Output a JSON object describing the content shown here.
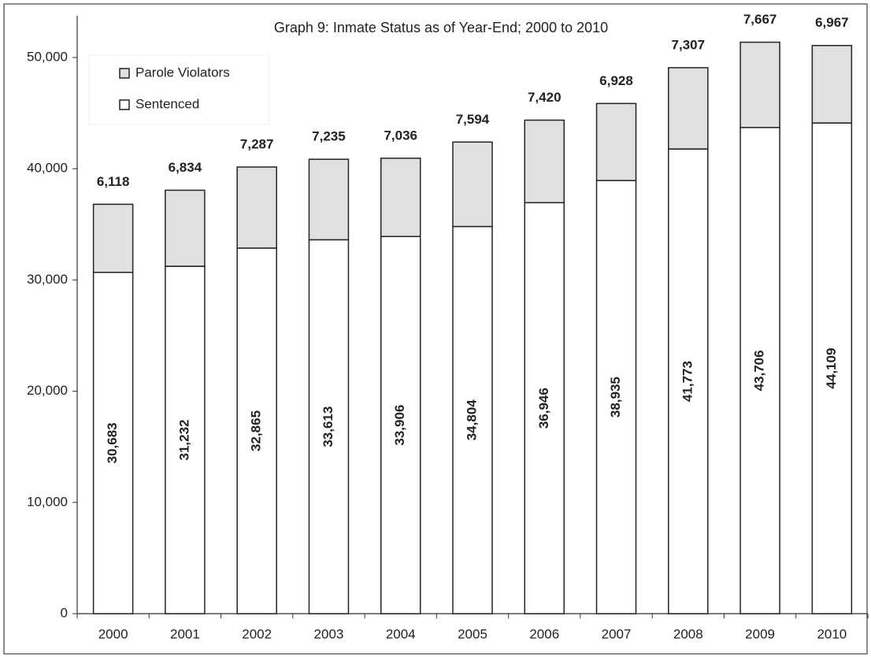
{
  "chart_data": {
    "type": "stacked_bar",
    "title": "Graph 9: Inmate Status as of Year-End; 2000 to 2010",
    "categories": [
      "2000",
      "2001",
      "2002",
      "2003",
      "2004",
      "2005",
      "2006",
      "2007",
      "2008",
      "2009",
      "2010"
    ],
    "series": [
      {
        "name": "Sentenced",
        "color": "#ffffff",
        "values": [
          30683,
          31232,
          32865,
          33613,
          33906,
          34804,
          36946,
          38935,
          41773,
          43706,
          44109
        ],
        "value_labels": [
          "30,683",
          "31,232",
          "32,865",
          "33,613",
          "33,906",
          "34,804",
          "36,946",
          "38,935",
          "41,773",
          "43,706",
          "44,109"
        ]
      },
      {
        "name": "Parole Violators",
        "color": "#e0e0e0",
        "values": [
          6118,
          6834,
          7287,
          7235,
          7036,
          7594,
          7420,
          6928,
          7307,
          7667,
          6967
        ],
        "value_labels": [
          "6,118",
          "6,834",
          "7,287",
          "7,235",
          "7,036",
          "7,594",
          "7,420",
          "6,928",
          "7,307",
          "7,667",
          "6,967"
        ]
      }
    ],
    "ylim": [
      0,
      53750
    ],
    "yticks": [
      0,
      {
        "value": 10000,
        "label": "10,000"
      },
      {
        "value": 20000,
        "label": "20,000"
      },
      {
        "value": 30000,
        "label": "30,000"
      },
      {
        "value": 40000,
        "label": "40,000"
      },
      {
        "value": 50000,
        "label": "50,000"
      }
    ],
    "grid": false,
    "legend": "top-left"
  }
}
